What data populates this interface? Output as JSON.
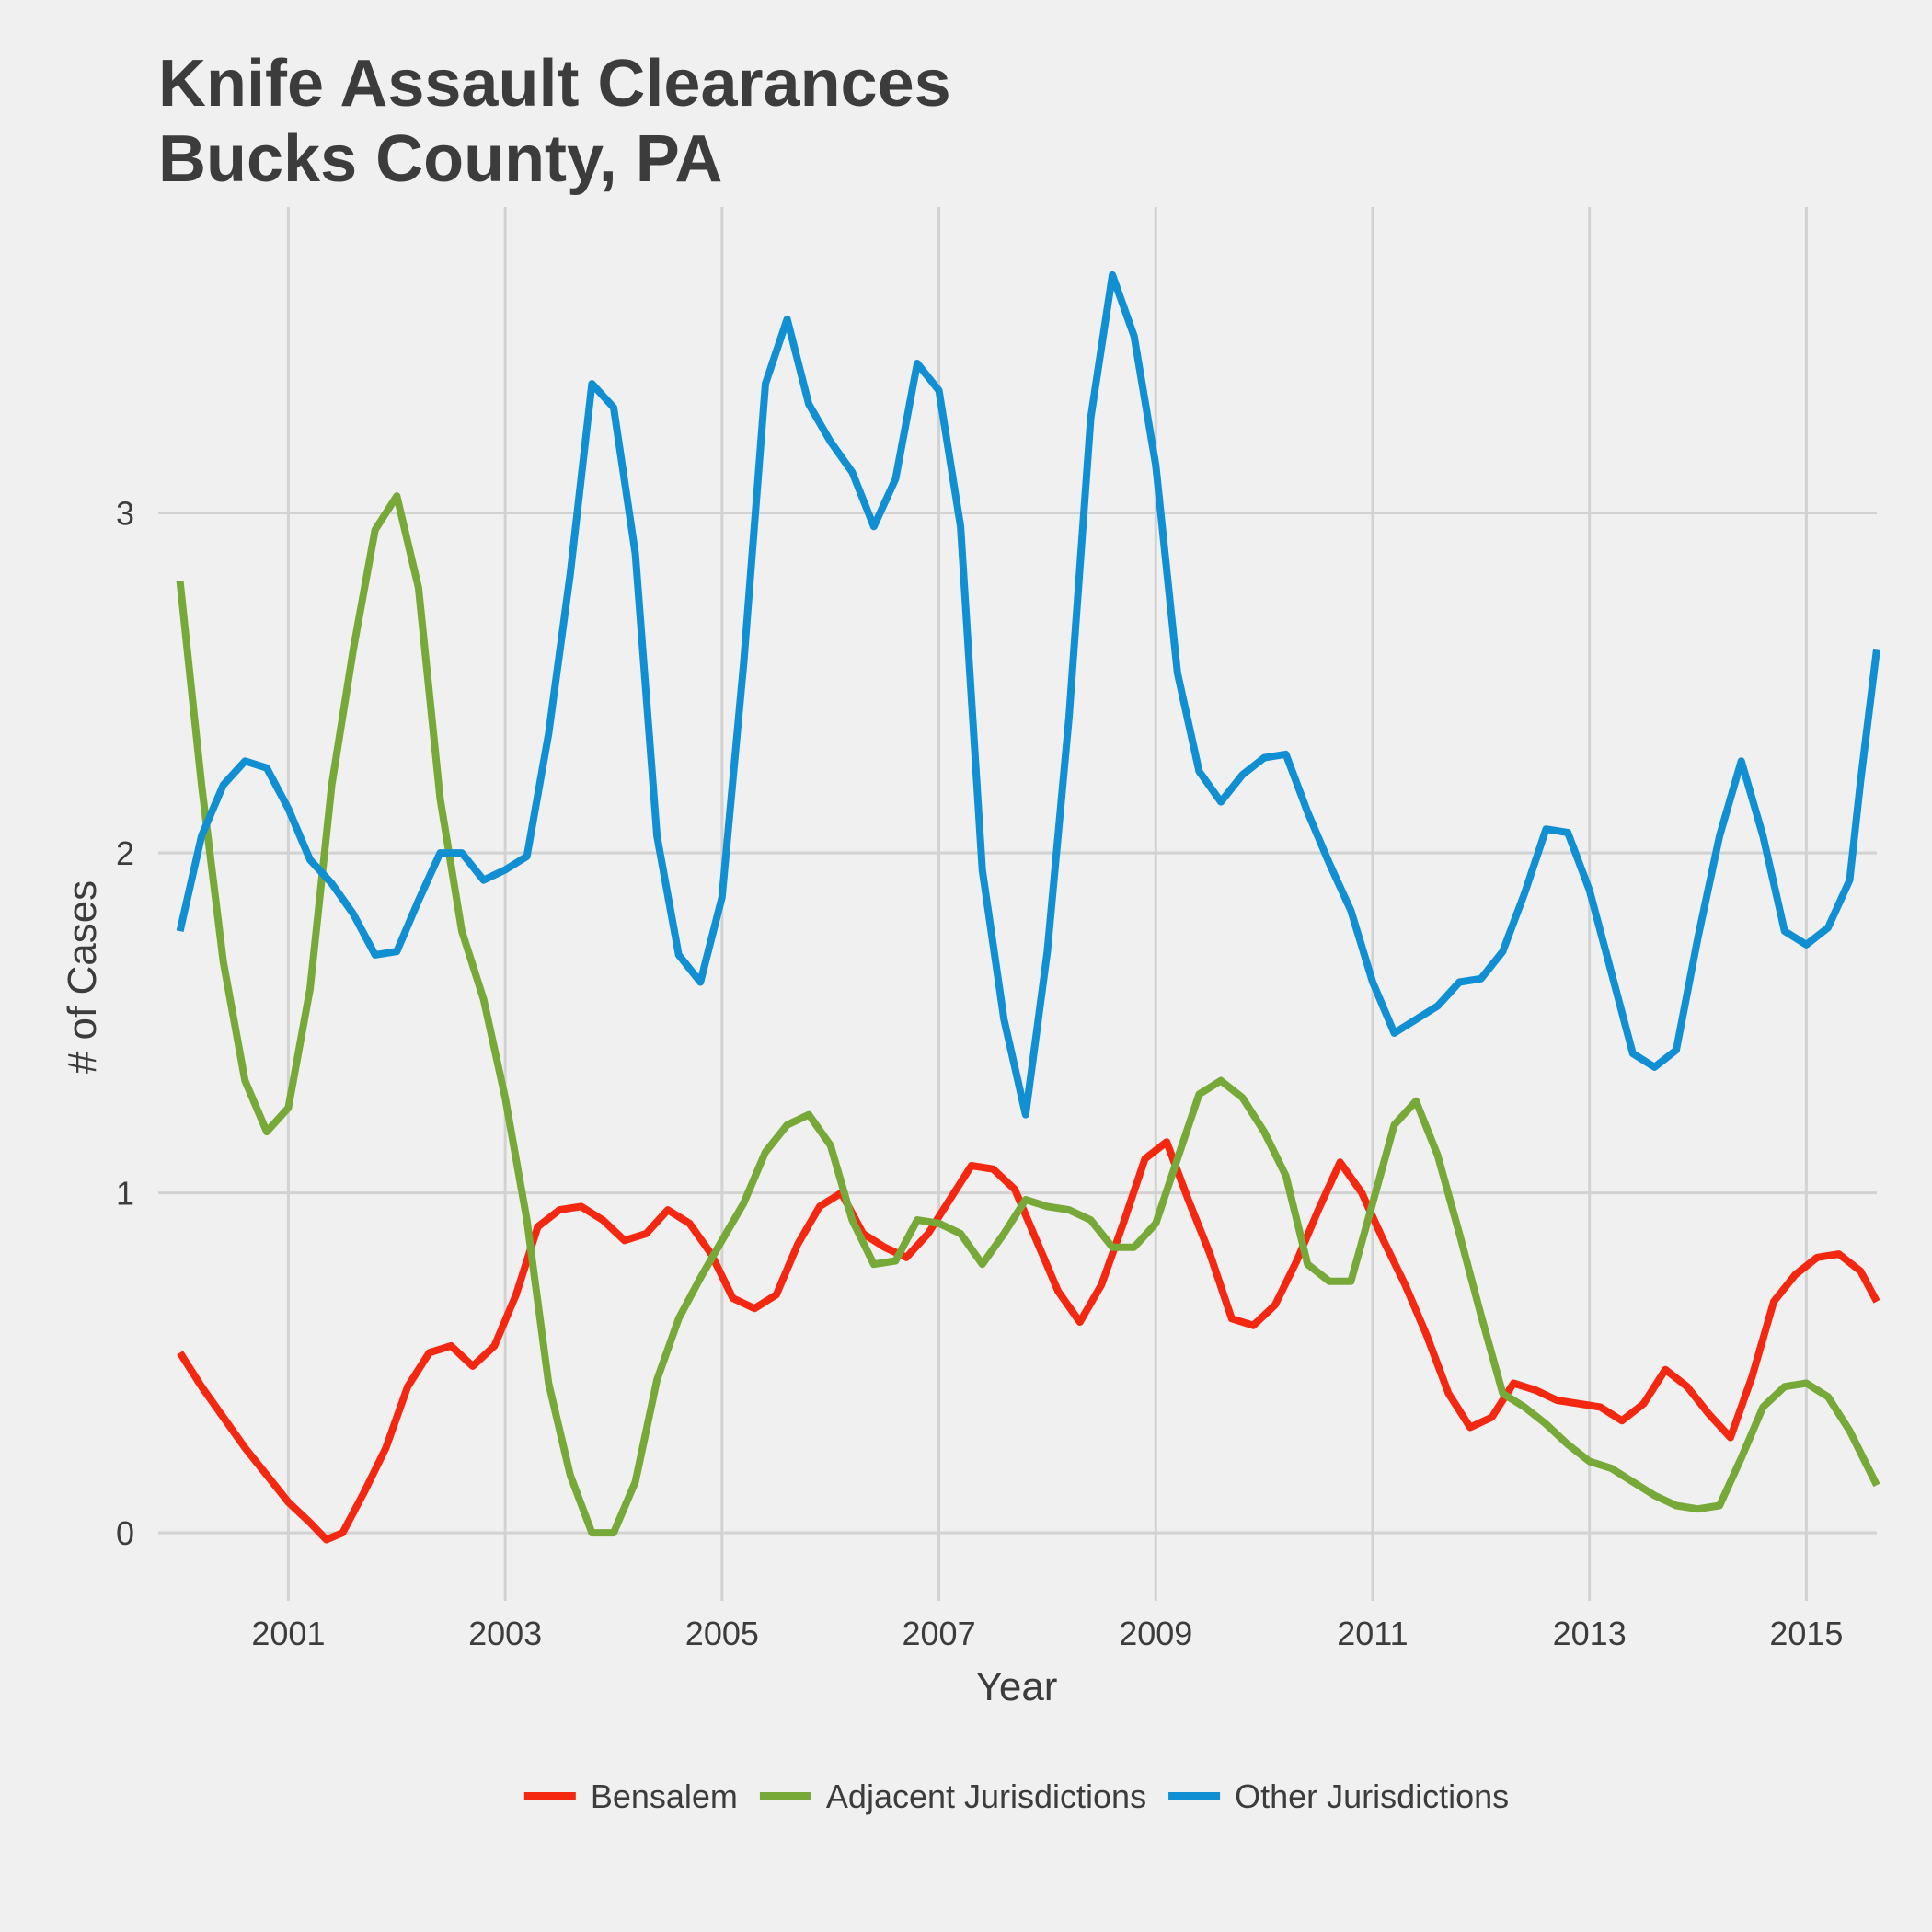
{
  "chart_data": {
    "type": "line",
    "title": [
      "Knife Assault Clearances",
      "Bucks County, PA"
    ],
    "xlabel": "Year",
    "ylabel": "# of Cases",
    "xlim": [
      1999.8,
      2015.65
    ],
    "ylim": [
      -0.2,
      3.9
    ],
    "x_ticks": [
      2001,
      2003,
      2005,
      2007,
      2009,
      2011,
      2013,
      2015
    ],
    "y_ticks": [
      0,
      1,
      2,
      3
    ],
    "grid": true,
    "legend_position": "bottom",
    "series": [
      {
        "name": "Bensalem",
        "color": "#f42810",
        "points": [
          [
            2000.0,
            0.53
          ],
          [
            2000.2,
            0.43
          ],
          [
            2000.4,
            0.34
          ],
          [
            2000.6,
            0.25
          ],
          [
            2000.8,
            0.17
          ],
          [
            2001.0,
            0.09
          ],
          [
            2001.2,
            0.03
          ],
          [
            2001.35,
            -0.02
          ],
          [
            2001.5,
            0.0
          ],
          [
            2001.7,
            0.12
          ],
          [
            2001.9,
            0.25
          ],
          [
            2002.1,
            0.43
          ],
          [
            2002.3,
            0.53
          ],
          [
            2002.5,
            0.55
          ],
          [
            2002.7,
            0.49
          ],
          [
            2002.9,
            0.55
          ],
          [
            2003.1,
            0.7
          ],
          [
            2003.3,
            0.9
          ],
          [
            2003.5,
            0.95
          ],
          [
            2003.7,
            0.96
          ],
          [
            2003.9,
            0.92
          ],
          [
            2004.1,
            0.86
          ],
          [
            2004.3,
            0.88
          ],
          [
            2004.5,
            0.95
          ],
          [
            2004.7,
            0.91
          ],
          [
            2004.9,
            0.82
          ],
          [
            2005.1,
            0.69
          ],
          [
            2005.3,
            0.66
          ],
          [
            2005.5,
            0.7
          ],
          [
            2005.7,
            0.85
          ],
          [
            2005.9,
            0.96
          ],
          [
            2006.1,
            1.0
          ],
          [
            2006.3,
            0.88
          ],
          [
            2006.5,
            0.84
          ],
          [
            2006.7,
            0.81
          ],
          [
            2006.9,
            0.88
          ],
          [
            2007.1,
            0.98
          ],
          [
            2007.3,
            1.08
          ],
          [
            2007.5,
            1.07
          ],
          [
            2007.7,
            1.01
          ],
          [
            2007.9,
            0.86
          ],
          [
            2008.1,
            0.71
          ],
          [
            2008.3,
            0.62
          ],
          [
            2008.5,
            0.73
          ],
          [
            2008.7,
            0.91
          ],
          [
            2008.9,
            1.1
          ],
          [
            2009.1,
            1.15
          ],
          [
            2009.3,
            0.98
          ],
          [
            2009.5,
            0.82
          ],
          [
            2009.7,
            0.63
          ],
          [
            2009.9,
            0.61
          ],
          [
            2010.1,
            0.67
          ],
          [
            2010.3,
            0.8
          ],
          [
            2010.5,
            0.95
          ],
          [
            2010.7,
            1.09
          ],
          [
            2010.9,
            1.0
          ],
          [
            2011.1,
            0.86
          ],
          [
            2011.3,
            0.73
          ],
          [
            2011.5,
            0.58
          ],
          [
            2011.7,
            0.41
          ],
          [
            2011.9,
            0.31
          ],
          [
            2012.1,
            0.34
          ],
          [
            2012.3,
            0.44
          ],
          [
            2012.5,
            0.42
          ],
          [
            2012.7,
            0.39
          ],
          [
            2012.9,
            0.38
          ],
          [
            2013.1,
            0.37
          ],
          [
            2013.3,
            0.33
          ],
          [
            2013.5,
            0.38
          ],
          [
            2013.7,
            0.48
          ],
          [
            2013.9,
            0.43
          ],
          [
            2014.1,
            0.35
          ],
          [
            2014.3,
            0.28
          ],
          [
            2014.5,
            0.46
          ],
          [
            2014.7,
            0.68
          ],
          [
            2014.9,
            0.76
          ],
          [
            2015.1,
            0.81
          ],
          [
            2015.3,
            0.82
          ],
          [
            2015.5,
            0.77
          ],
          [
            2015.65,
            0.68
          ]
        ]
      },
      {
        "name": "Adjacent Jurisdictions",
        "color": "#77a939",
        "points": [
          [
            2000.0,
            2.8
          ],
          [
            2000.2,
            2.2
          ],
          [
            2000.4,
            1.68
          ],
          [
            2000.6,
            1.33
          ],
          [
            2000.8,
            1.18
          ],
          [
            2001.0,
            1.25
          ],
          [
            2001.2,
            1.6
          ],
          [
            2001.4,
            2.2
          ],
          [
            2001.6,
            2.6
          ],
          [
            2001.8,
            2.95
          ],
          [
            2002.0,
            3.05
          ],
          [
            2002.2,
            2.78
          ],
          [
            2002.4,
            2.16
          ],
          [
            2002.6,
            1.77
          ],
          [
            2002.8,
            1.57
          ],
          [
            2003.0,
            1.28
          ],
          [
            2003.2,
            0.92
          ],
          [
            2003.4,
            0.44
          ],
          [
            2003.6,
            0.17
          ],
          [
            2003.8,
            0.0
          ],
          [
            2004.0,
            0.0
          ],
          [
            2004.2,
            0.15
          ],
          [
            2004.4,
            0.45
          ],
          [
            2004.6,
            0.63
          ],
          [
            2004.8,
            0.75
          ],
          [
            2005.0,
            0.86
          ],
          [
            2005.2,
            0.97
          ],
          [
            2005.4,
            1.12
          ],
          [
            2005.6,
            1.2
          ],
          [
            2005.8,
            1.23
          ],
          [
            2006.0,
            1.14
          ],
          [
            2006.2,
            0.92
          ],
          [
            2006.4,
            0.79
          ],
          [
            2006.6,
            0.8
          ],
          [
            2006.8,
            0.92
          ],
          [
            2007.0,
            0.91
          ],
          [
            2007.2,
            0.88
          ],
          [
            2007.4,
            0.79
          ],
          [
            2007.6,
            0.88
          ],
          [
            2007.8,
            0.98
          ],
          [
            2008.0,
            0.96
          ],
          [
            2008.2,
            0.95
          ],
          [
            2008.4,
            0.92
          ],
          [
            2008.6,
            0.84
          ],
          [
            2008.8,
            0.84
          ],
          [
            2009.0,
            0.91
          ],
          [
            2009.2,
            1.1
          ],
          [
            2009.4,
            1.29
          ],
          [
            2009.6,
            1.33
          ],
          [
            2009.8,
            1.28
          ],
          [
            2010.0,
            1.18
          ],
          [
            2010.2,
            1.05
          ],
          [
            2010.4,
            0.79
          ],
          [
            2010.6,
            0.74
          ],
          [
            2010.8,
            0.74
          ],
          [
            2011.0,
            0.97
          ],
          [
            2011.2,
            1.2
          ],
          [
            2011.4,
            1.27
          ],
          [
            2011.6,
            1.11
          ],
          [
            2011.8,
            0.88
          ],
          [
            2012.0,
            0.64
          ],
          [
            2012.2,
            0.41
          ],
          [
            2012.4,
            0.37
          ],
          [
            2012.6,
            0.32
          ],
          [
            2012.8,
            0.26
          ],
          [
            2013.0,
            0.21
          ],
          [
            2013.2,
            0.19
          ],
          [
            2013.4,
            0.15
          ],
          [
            2013.6,
            0.11
          ],
          [
            2013.8,
            0.08
          ],
          [
            2014.0,
            0.07
          ],
          [
            2014.2,
            0.08
          ],
          [
            2014.4,
            0.22
          ],
          [
            2014.6,
            0.37
          ],
          [
            2014.8,
            0.43
          ],
          [
            2015.0,
            0.44
          ],
          [
            2015.2,
            0.4
          ],
          [
            2015.4,
            0.3
          ],
          [
            2015.65,
            0.14
          ]
        ]
      },
      {
        "name": "Other Jurisdictions",
        "color": "#118fd3",
        "points": [
          [
            2000.0,
            1.77
          ],
          [
            2000.2,
            2.05
          ],
          [
            2000.4,
            2.2
          ],
          [
            2000.6,
            2.27
          ],
          [
            2000.8,
            2.25
          ],
          [
            2001.0,
            2.13
          ],
          [
            2001.2,
            1.98
          ],
          [
            2001.4,
            1.91
          ],
          [
            2001.6,
            1.82
          ],
          [
            2001.8,
            1.7
          ],
          [
            2002.0,
            1.71
          ],
          [
            2002.2,
            1.86
          ],
          [
            2002.4,
            2.0
          ],
          [
            2002.6,
            2.0
          ],
          [
            2002.8,
            1.92
          ],
          [
            2003.0,
            1.95
          ],
          [
            2003.2,
            1.99
          ],
          [
            2003.4,
            2.35
          ],
          [
            2003.6,
            2.82
          ],
          [
            2003.8,
            3.38
          ],
          [
            2004.0,
            3.31
          ],
          [
            2004.2,
            2.88
          ],
          [
            2004.4,
            2.05
          ],
          [
            2004.6,
            1.7
          ],
          [
            2004.8,
            1.62
          ],
          [
            2005.0,
            1.87
          ],
          [
            2005.2,
            2.56
          ],
          [
            2005.4,
            3.38
          ],
          [
            2005.6,
            3.57
          ],
          [
            2005.8,
            3.32
          ],
          [
            2006.0,
            3.21
          ],
          [
            2006.2,
            3.12
          ],
          [
            2006.4,
            2.96
          ],
          [
            2006.6,
            3.1
          ],
          [
            2006.8,
            3.44
          ],
          [
            2007.0,
            3.36
          ],
          [
            2007.2,
            2.96
          ],
          [
            2007.4,
            1.95
          ],
          [
            2007.6,
            1.51
          ],
          [
            2007.8,
            1.23
          ],
          [
            2008.0,
            1.71
          ],
          [
            2008.2,
            2.4
          ],
          [
            2008.4,
            3.28
          ],
          [
            2008.6,
            3.7
          ],
          [
            2008.8,
            3.52
          ],
          [
            2009.0,
            3.14
          ],
          [
            2009.2,
            2.53
          ],
          [
            2009.4,
            2.24
          ],
          [
            2009.6,
            2.15
          ],
          [
            2009.8,
            2.23
          ],
          [
            2010.0,
            2.28
          ],
          [
            2010.2,
            2.29
          ],
          [
            2010.4,
            2.12
          ],
          [
            2010.6,
            1.97
          ],
          [
            2010.8,
            1.83
          ],
          [
            2011.0,
            1.62
          ],
          [
            2011.2,
            1.47
          ],
          [
            2011.4,
            1.51
          ],
          [
            2011.6,
            1.55
          ],
          [
            2011.8,
            1.62
          ],
          [
            2012.0,
            1.63
          ],
          [
            2012.2,
            1.71
          ],
          [
            2012.4,
            1.88
          ],
          [
            2012.6,
            2.07
          ],
          [
            2012.8,
            2.06
          ],
          [
            2013.0,
            1.89
          ],
          [
            2013.2,
            1.65
          ],
          [
            2013.4,
            1.41
          ],
          [
            2013.6,
            1.37
          ],
          [
            2013.8,
            1.42
          ],
          [
            2014.0,
            1.75
          ],
          [
            2014.2,
            2.05
          ],
          [
            2014.4,
            2.27
          ],
          [
            2014.6,
            2.05
          ],
          [
            2014.8,
            1.77
          ],
          [
            2015.0,
            1.73
          ],
          [
            2015.2,
            1.78
          ],
          [
            2015.4,
            1.92
          ],
          [
            2015.5,
            2.21
          ],
          [
            2015.65,
            2.6
          ]
        ]
      }
    ]
  }
}
